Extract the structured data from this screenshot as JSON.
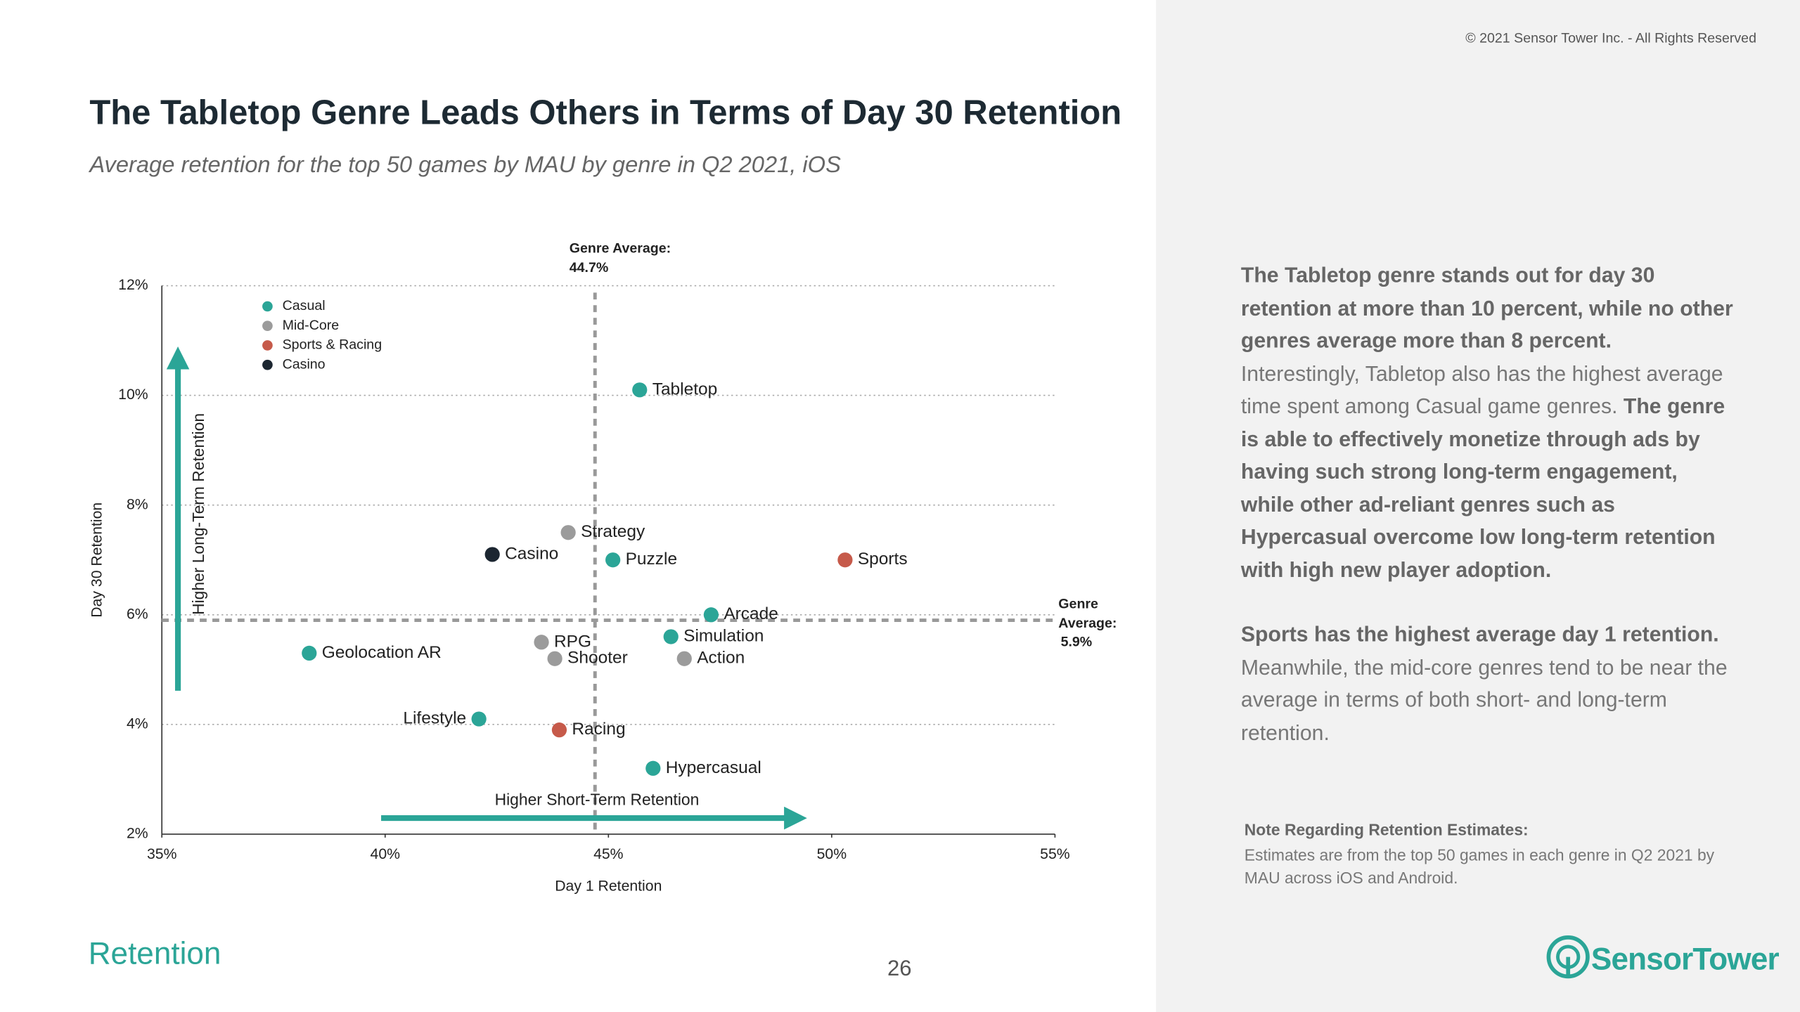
{
  "copyright": "© 2021 Sensor Tower Inc. - All Rights Reserved",
  "chart_data": {
    "type": "scatter",
    "title": "The Tabletop Genre Leads Others in Terms of Day 30 Retention",
    "subtitle": "Average retention for the top 50 games by MAU by genre in Q2 2021, iOS",
    "x_label": "Day 1 Retention",
    "y_label": "Day 30 Retention",
    "xlim": [
      35,
      55
    ],
    "ylim": [
      2,
      12
    ],
    "xticks": [
      {
        "value": 35,
        "label": "35%"
      },
      {
        "value": 40,
        "label": "40%"
      },
      {
        "value": 45,
        "label": "45%"
      },
      {
        "value": 50,
        "label": "50%"
      },
      {
        "value": 55,
        "label": "55%"
      }
    ],
    "yticks": [
      {
        "value": 2,
        "label": "2%"
      },
      {
        "value": 4,
        "label": "4%"
      },
      {
        "value": 6,
        "label": "6%"
      },
      {
        "value": 8,
        "label": "8%"
      },
      {
        "value": 10,
        "label": "10%"
      },
      {
        "value": 12,
        "label": "12%"
      }
    ],
    "grid": true,
    "legend": "upper left",
    "series": [
      {
        "name": "Casual",
        "color": "#2ba597",
        "labels": [
          "Tabletop",
          "Puzzle",
          "Arcade",
          "Simulation",
          "Geolocation AR",
          "Lifestyle",
          "Hypercasual"
        ],
        "x": [
          45.7,
          45.1,
          47.3,
          46.4,
          38.3,
          42.1,
          46.0
        ],
        "values": [
          10.1,
          7.0,
          6.0,
          5.6,
          5.3,
          4.1,
          3.2
        ]
      },
      {
        "name": "Mid-Core",
        "color": "#9b9b9b",
        "labels": [
          "Strategy",
          "RPG",
          "Shooter",
          "Action"
        ],
        "x": [
          44.1,
          43.5,
          43.8,
          46.7
        ],
        "values": [
          7.5,
          5.5,
          5.2,
          5.2
        ]
      },
      {
        "name": "Sports & Racing",
        "color": "#c65a4a",
        "labels": [
          "Sports",
          "Racing"
        ],
        "x": [
          50.3,
          43.9
        ],
        "values": [
          7.0,
          3.9
        ]
      },
      {
        "name": "Casino",
        "color": "#1c2631",
        "labels": [
          "Casino"
        ],
        "x": [
          42.4
        ],
        "values": [
          7.1
        ]
      }
    ],
    "reference_lines": [
      {
        "axis": "x",
        "value": 44.7,
        "label": "Genre Average:",
        "value_label": "44.7%"
      },
      {
        "axis": "y",
        "value": 5.9,
        "label": "Genre Average:",
        "value_label": "5.9%"
      }
    ],
    "annotations": [
      "Higher Long-Term Retention",
      "Higher Short-Term Retention"
    ]
  },
  "sidebar": {
    "paragraphs": [
      [
        {
          "text": "The Tabletop genre stands out for day 30 retention at more than 10 percent, while no other genres average more than 8 percent.",
          "bold": true
        },
        {
          "text": " Interestingly, Tabletop also has the highest average time spent among Casual game genres.",
          "bold": false
        },
        {
          "text": " The genre is able to effectively monetize through ads by having such strong long-term engagement, while other ad-reliant genres such as Hypercasual overcome low long-term retention with high new player adoption.",
          "bold": true
        }
      ],
      [
        {
          "text": "Sports has the highest average day 1 retention.",
          "bold": true
        },
        {
          "text": " Meanwhile, the mid-core genres tend to be near the average in terms of both short- and long-term retention.",
          "bold": false
        }
      ]
    ],
    "note_title": "Note Regarding Retention Estimates:",
    "note": "Estimates are from the top 50 games in each genre in Q2 2021 by MAU across iOS and Android."
  },
  "footer": {
    "section": "Retention",
    "page": "26",
    "logo": "SensorTower"
  }
}
